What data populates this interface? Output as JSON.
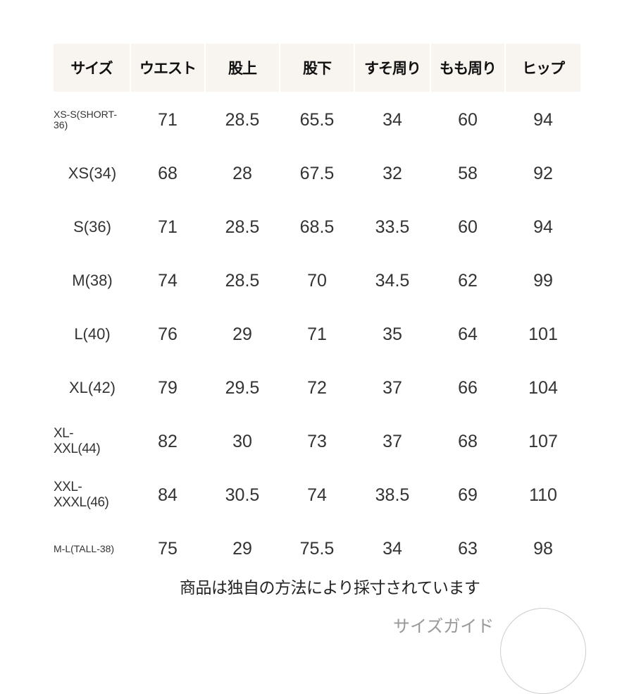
{
  "headers": [
    "サイズ",
    "ウエスト",
    "股上",
    "股下",
    "すそ周り",
    "もも周り",
    "ヒップ"
  ],
  "rows": [
    {
      "size": "XS-S(SHORT-36)",
      "values": [
        "71",
        "28.5",
        "65.5",
        "34",
        "60",
        "94"
      ]
    },
    {
      "size": "XS(34)",
      "values": [
        "68",
        "28",
        "67.5",
        "32",
        "58",
        "92"
      ]
    },
    {
      "size": "S(36)",
      "values": [
        "71",
        "28.5",
        "68.5",
        "33.5",
        "60",
        "94"
      ]
    },
    {
      "size": "M(38)",
      "values": [
        "74",
        "28.5",
        "70",
        "34.5",
        "62",
        "99"
      ]
    },
    {
      "size": "L(40)",
      "values": [
        "76",
        "29",
        "71",
        "35",
        "64",
        "101"
      ]
    },
    {
      "size": "XL(42)",
      "values": [
        "79",
        "29.5",
        "72",
        "37",
        "66",
        "104"
      ]
    },
    {
      "size": "XL-XXL(44)",
      "values": [
        "82",
        "30",
        "73",
        "37",
        "68",
        "107"
      ]
    },
    {
      "size": "XXL-XXXL(46)",
      "values": [
        "84",
        "30.5",
        "74",
        "38.5",
        "69",
        "110"
      ]
    },
    {
      "size": "M-L(TALL-38)",
      "values": [
        "75",
        "29",
        "75.5",
        "34",
        "63",
        "98"
      ]
    }
  ],
  "note": "商品は独自の方法により採寸されています",
  "guide_label": "サイズガイド",
  "colors": {
    "header_bg": "#f8f4f0",
    "text": "#333333"
  }
}
